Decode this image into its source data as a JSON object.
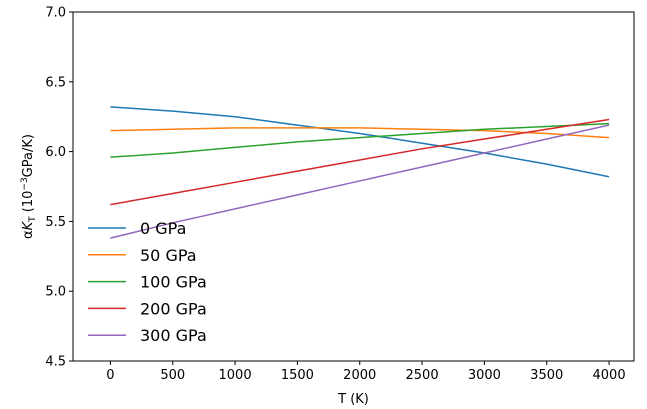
{
  "chart_data": {
    "type": "line",
    "xlabel": "T (K)",
    "ylabel": {
      "prefix": "α",
      "symbol": "K",
      "subscript": "T",
      "units_open": " (10",
      "exponent": "−3",
      "units_close": "GPa/K)"
    },
    "xlim": [
      -300,
      4200
    ],
    "ylim": [
      4.5,
      7.0
    ],
    "xticks": [
      0,
      500,
      1000,
      1500,
      2000,
      2500,
      3000,
      3500,
      4000
    ],
    "yticks": [
      4.5,
      5.0,
      5.5,
      6.0,
      6.5,
      7.0
    ],
    "xtick_labels": [
      "0",
      "500",
      "1000",
      "1500",
      "2000",
      "2500",
      "3000",
      "3500",
      "4000"
    ],
    "ytick_labels": [
      "4.5",
      "5.0",
      "5.5",
      "6.0",
      "6.5",
      "7.0"
    ],
    "grid": false,
    "legend_position": "lower-left",
    "x": [
      0,
      500,
      1000,
      1500,
      2000,
      2500,
      3000,
      3500,
      4000
    ],
    "series": [
      {
        "name": "0 GPa",
        "color": "#1f77b4",
        "values": [
          6.32,
          6.29,
          6.25,
          6.19,
          6.13,
          6.06,
          5.99,
          5.91,
          5.82
        ]
      },
      {
        "name": "50 GPa",
        "color": "#ff7f0e",
        "values": [
          6.15,
          6.16,
          6.17,
          6.17,
          6.17,
          6.16,
          6.15,
          6.13,
          6.1
        ]
      },
      {
        "name": "100 GPa",
        "color": "#2ca02c",
        "values": [
          5.96,
          5.99,
          6.03,
          6.07,
          6.1,
          6.13,
          6.16,
          6.18,
          6.2
        ]
      },
      {
        "name": "200 GPa",
        "color": "#d62728",
        "values": [
          5.62,
          5.7,
          5.78,
          5.86,
          5.94,
          6.02,
          6.09,
          6.16,
          6.23
        ]
      },
      {
        "name": "300 GPa",
        "color": "#9467bd",
        "values": [
          5.38,
          5.49,
          5.59,
          5.69,
          5.79,
          5.89,
          5.99,
          6.09,
          6.19
        ]
      }
    ]
  }
}
